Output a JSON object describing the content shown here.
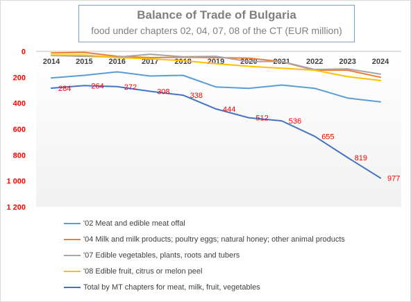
{
  "chart_data": {
    "type": "line",
    "title": "Balance of Trade of Bulgaria",
    "subtitle": "food under chapters 02, 04, 07, 08 of the CT (EUR million)",
    "x": [
      "2014",
      "2015",
      "2016",
      "2017",
      "2018",
      "2019",
      "2020",
      "2021",
      "2022",
      "2023",
      "2024"
    ],
    "ylim": [
      0,
      1200
    ],
    "y_reversed": true,
    "y_ticks": [
      0,
      200,
      400,
      600,
      800,
      1000,
      1200
    ],
    "y_tick_labels": [
      "0",
      "200",
      "400",
      "600",
      "800",
      "1 000",
      "1 200"
    ],
    "grid": false,
    "legend_position": "bottom",
    "series": [
      {
        "name": "'02 Meat and edible meat offal",
        "color": "#5b9bd5",
        "values": [
          205,
          185,
          158,
          190,
          185,
          275,
          285,
          260,
          285,
          360,
          390
        ]
      },
      {
        "name": "'04 Milk and milk products; poultry eggs; natural honey; other animal products",
        "color": "#ed7d31",
        "values": [
          12,
          8,
          38,
          48,
          45,
          48,
          52,
          80,
          145,
          145,
          200
        ]
      },
      {
        "name": "'07 Edible vegetables, plants, roots and tubers",
        "color": "#a5a5a5",
        "values": [
          32,
          38,
          44,
          22,
          42,
          38,
          78,
          78,
          140,
          135,
          175
        ]
      },
      {
        "name": "'08 Edible fruit, citrus or melon peel",
        "color": "#ffc000",
        "values": [
          28,
          28,
          48,
          58,
          72,
          95,
          115,
          130,
          145,
          195,
          225
        ]
      },
      {
        "name": "Total by MT chapters for meat, milk, fruit, vegetables",
        "color": "#4472c4",
        "values": [
          284,
          264,
          272,
          308,
          338,
          444,
          512,
          536,
          655,
          819,
          977
        ],
        "data_labels": [
          "284",
          "264",
          "272",
          "308",
          "338",
          "444",
          "512",
          "536",
          "655",
          "819",
          "977"
        ]
      }
    ],
    "colors": {
      "tick_label": "#ff0000",
      "data_label": "#ff0000",
      "axis_line": "#bfbfbf",
      "category_label": "#404040"
    }
  }
}
